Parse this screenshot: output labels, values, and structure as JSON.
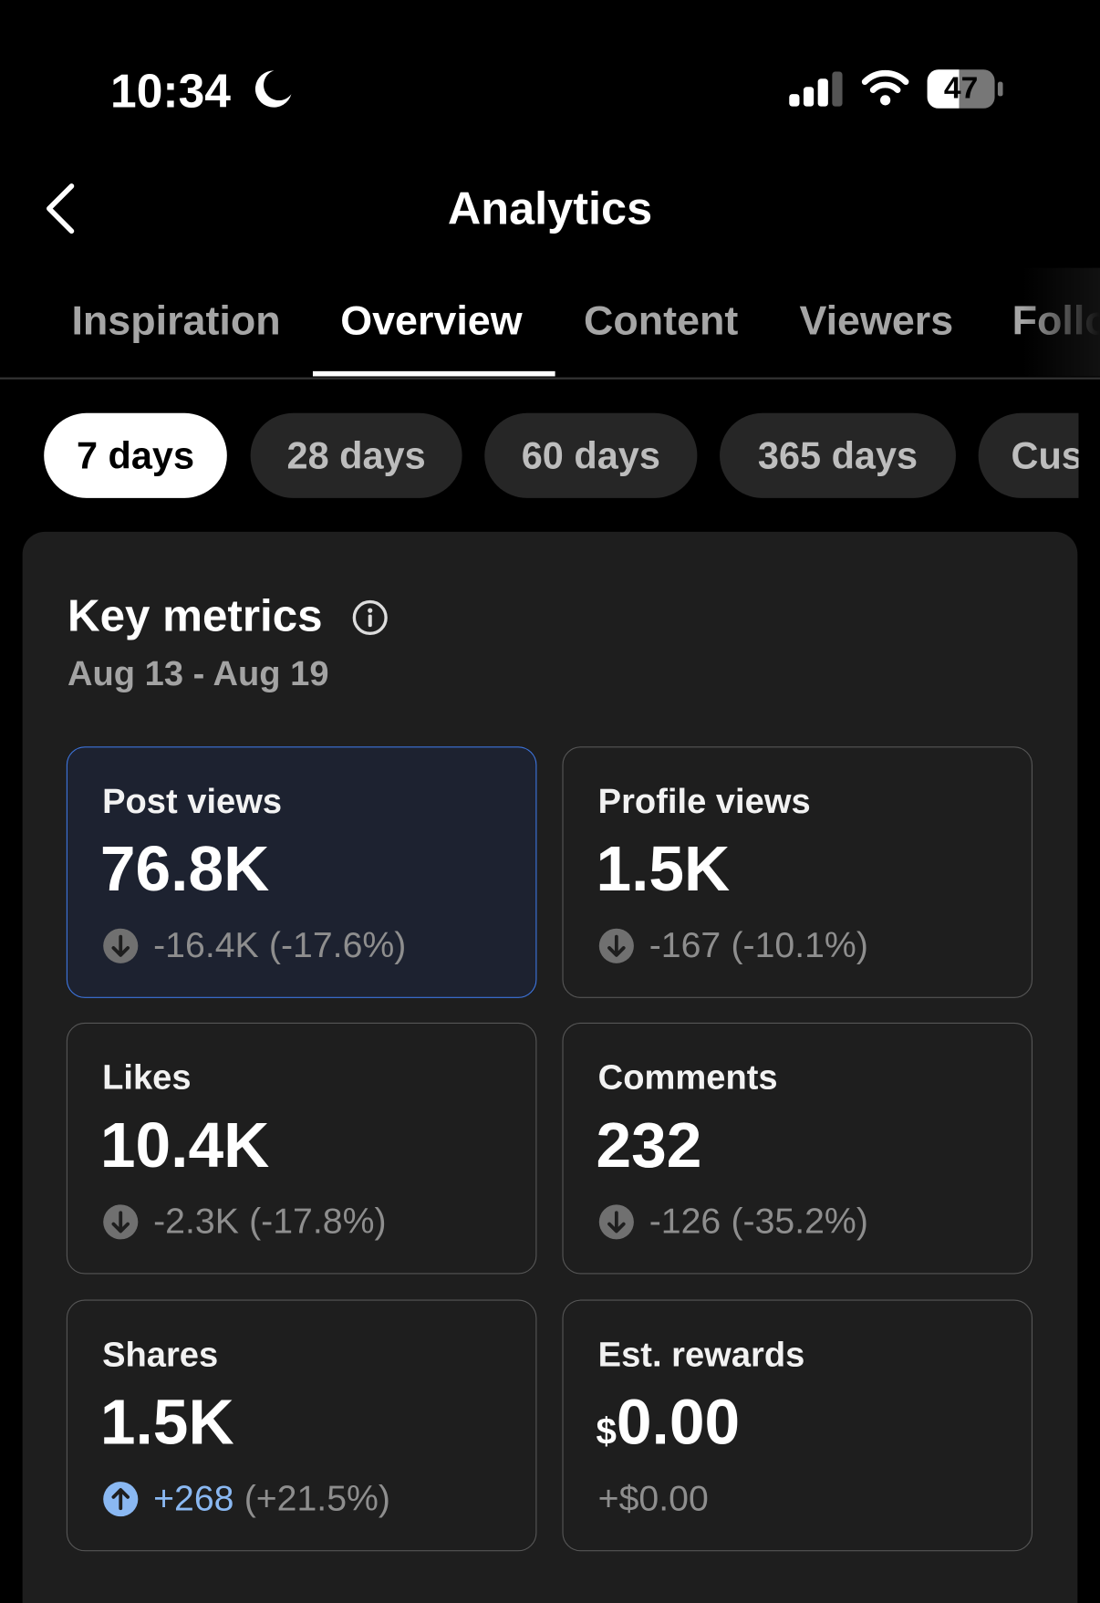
{
  "status_bar": {
    "time": "10:34",
    "battery": "47"
  },
  "header": {
    "title": "Analytics"
  },
  "tabs": [
    "Inspiration",
    "Overview",
    "Content",
    "Viewers",
    "Follo"
  ],
  "active_tab": 1,
  "periods": [
    "7 days",
    "28 days",
    "60 days",
    "365 days",
    "Cus"
  ],
  "active_period": 0,
  "panel": {
    "title": "Key metrics",
    "date_range": "Aug 13 - Aug 19",
    "metrics": [
      {
        "label": "Post views",
        "value": "76.8K",
        "change": "-16.4K",
        "change_pct": "(-17.6%)"
      },
      {
        "label": "Profile views",
        "value": "1.5K",
        "change": "-167",
        "change_pct": "(-10.1%)"
      },
      {
        "label": "Likes",
        "value": "10.4K",
        "change": "-2.3K",
        "change_pct": "(-17.8%)"
      },
      {
        "label": "Comments",
        "value": "232",
        "change": "-126",
        "change_pct": "(-35.2%)"
      },
      {
        "label": "Shares",
        "value": "1.5K",
        "change": "+268",
        "change_pct": "(+21.5%)"
      },
      {
        "label": "Est. rewards",
        "currency": "$",
        "value": "0.00",
        "change": "+$0.00"
      }
    ]
  }
}
